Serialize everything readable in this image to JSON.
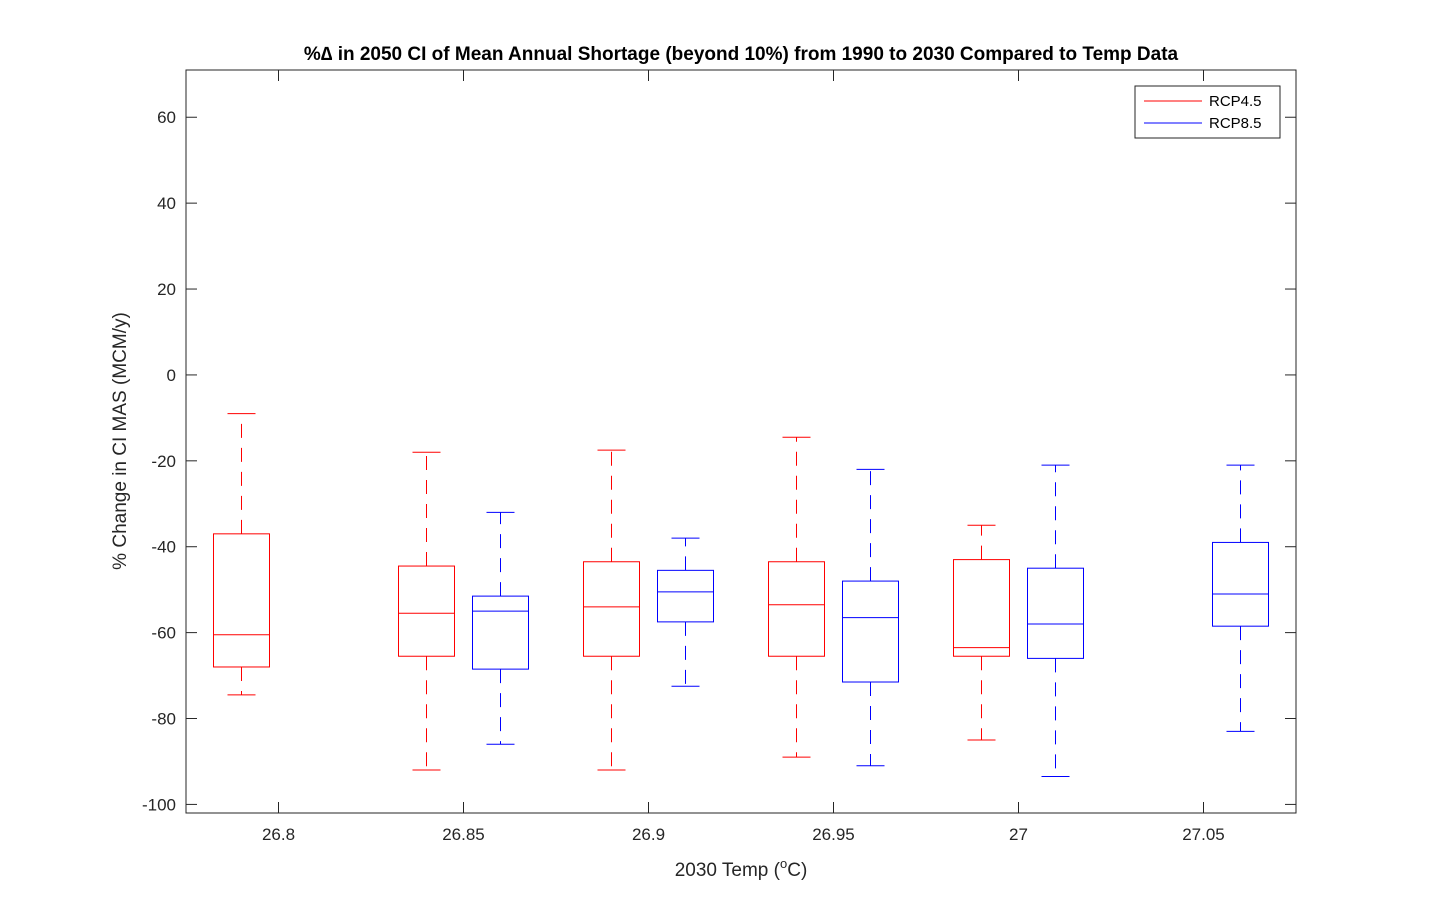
{
  "chart_data": {
    "type": "box",
    "title": "%∆ in 2050 CI of Mean Annual Shortage (beyond 10%) from 1990 to 2030 Compared to Temp Data",
    "xlabel_main": "2030 Temp (",
    "xlabel_sup": "o",
    "xlabel_end": "C)",
    "ylabel": "% Change in CI MAS (MCM/y)",
    "xlim": [
      26.775,
      27.075
    ],
    "ylim": [
      -102,
      71
    ],
    "x_ticks": [
      {
        "value": 26.8,
        "label": "26.8"
      },
      {
        "value": 26.85,
        "label": "26.85"
      },
      {
        "value": 26.9,
        "label": "26.9"
      },
      {
        "value": 26.95,
        "label": "26.95"
      },
      {
        "value": 27.0,
        "label": "27"
      },
      {
        "value": 27.05,
        "label": "27.05"
      }
    ],
    "y_ticks": [
      {
        "value": 60,
        "label": "60"
      },
      {
        "value": 40,
        "label": "40"
      },
      {
        "value": 20,
        "label": "20"
      },
      {
        "value": 0,
        "label": "0"
      },
      {
        "value": -20,
        "label": "-20"
      },
      {
        "value": -40,
        "label": "-40"
      },
      {
        "value": -60,
        "label": "-60"
      },
      {
        "value": -80,
        "label": "-80"
      },
      {
        "value": -100,
        "label": "-100"
      }
    ],
    "legend_position": "top-right",
    "series": [
      {
        "name": "RCP4.5",
        "color": "#ff0000",
        "boxes": [
          {
            "x": 26.79,
            "whisker_low": -74.5,
            "q1": -68,
            "median": -60.5,
            "q3": -37,
            "whisker_high": -9
          },
          {
            "x": 26.84,
            "whisker_low": -92,
            "q1": -65.5,
            "median": -55.5,
            "q3": -44.5,
            "whisker_high": -18
          },
          {
            "x": 26.89,
            "whisker_low": -92,
            "q1": -65.5,
            "median": -54,
            "q3": -43.5,
            "whisker_high": -17.5
          },
          {
            "x": 26.94,
            "whisker_low": -89,
            "q1": -65.5,
            "median": -53.5,
            "q3": -43.5,
            "whisker_high": -14.5
          },
          {
            "x": 26.99,
            "whisker_low": -85,
            "q1": -65.5,
            "median": -63.5,
            "q3": -43,
            "whisker_high": -35
          }
        ]
      },
      {
        "name": "RCP8.5",
        "color": "#0000ff",
        "boxes": [
          {
            "x": 26.86,
            "whisker_low": -86,
            "q1": -68.5,
            "median": -55,
            "q3": -51.5,
            "whisker_high": -32
          },
          {
            "x": 26.91,
            "whisker_low": -72.5,
            "q1": -57.5,
            "median": -50.5,
            "q3": -45.5,
            "whisker_high": -38
          },
          {
            "x": 26.96,
            "whisker_low": -91,
            "q1": -71.5,
            "median": -56.5,
            "q3": -48,
            "whisker_high": -22
          },
          {
            "x": 27.01,
            "whisker_low": -93.5,
            "q1": -66,
            "median": -58,
            "q3": -45,
            "whisker_high": -21
          },
          {
            "x": 27.06,
            "whisker_low": -83,
            "q1": -58.5,
            "median": -51,
            "q3": -39,
            "whisker_high": -21
          }
        ]
      }
    ]
  }
}
